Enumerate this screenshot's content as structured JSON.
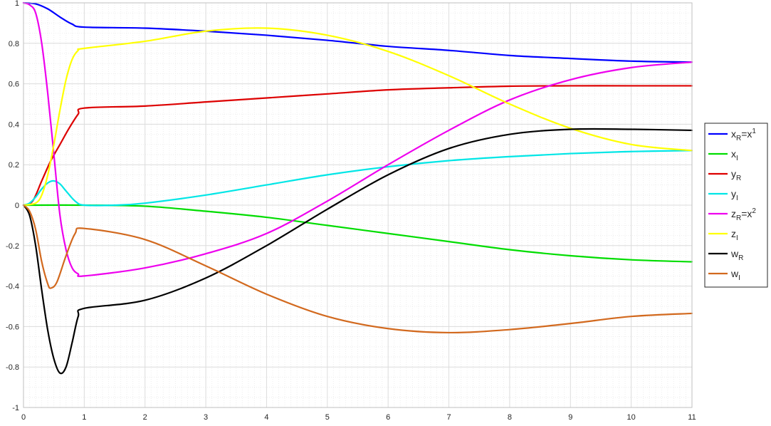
{
  "chart_data": {
    "type": "line",
    "title": "",
    "xlabel": "",
    "ylabel": "",
    "xlim": [
      0,
      11
    ],
    "ylim": [
      -1,
      1
    ],
    "x_ticks": [
      0,
      1,
      2,
      3,
      4,
      5,
      6,
      7,
      8,
      9,
      10,
      11
    ],
    "y_ticks": [
      -1,
      -0.8,
      -0.6,
      -0.4,
      -0.2,
      0,
      0.2,
      0.4,
      0.6,
      0.8,
      1
    ],
    "x_tick_labels": [
      "0",
      "1",
      "2",
      "3",
      "4",
      "5",
      "6",
      "7",
      "8",
      "9",
      "10",
      "11"
    ],
    "y_tick_labels": [
      "-1",
      "-0.8",
      "-0.6",
      "-0.4",
      "-0.2",
      "0",
      "0.2",
      "0.4",
      "0.6",
      "0.8",
      "1"
    ],
    "grid": "major and minor",
    "legend_position": "outside right",
    "series": [
      {
        "name": "x_R=x^1",
        "legend": {
          "base": "x",
          "sub": "R",
          "rest": "=x",
          "sup": "1"
        },
        "color": "#0000ff",
        "points": [
          [
            0,
            1
          ],
          [
            0.2,
            0.995
          ],
          [
            0.4,
            0.97
          ],
          [
            0.6,
            0.93
          ],
          [
            0.8,
            0.895
          ],
          [
            1,
            0.88
          ],
          [
            2,
            0.875
          ],
          [
            3,
            0.86
          ],
          [
            4,
            0.84
          ],
          [
            5,
            0.815
          ],
          [
            6,
            0.785
          ],
          [
            7,
            0.765
          ],
          [
            8,
            0.74
          ],
          [
            9,
            0.725
          ],
          [
            10,
            0.712
          ],
          [
            11,
            0.707
          ]
        ]
      },
      {
        "name": "x_I",
        "legend": {
          "base": "x",
          "sub": "I",
          "rest": "",
          "sup": ""
        },
        "color": "#00dd00",
        "points": [
          [
            0,
            0
          ],
          [
            1,
            0
          ],
          [
            2,
            -0.005
          ],
          [
            3,
            -0.03
          ],
          [
            4,
            -0.06
          ],
          [
            5,
            -0.1
          ],
          [
            6,
            -0.14
          ],
          [
            7,
            -0.18
          ],
          [
            8,
            -0.22
          ],
          [
            9,
            -0.25
          ],
          [
            10,
            -0.27
          ],
          [
            11,
            -0.28
          ]
        ]
      },
      {
        "name": "y_R",
        "legend": {
          "base": "y",
          "sub": "R",
          "rest": "",
          "sup": ""
        },
        "color": "#dd0000",
        "points": [
          [
            0,
            0
          ],
          [
            0.15,
            0.02
          ],
          [
            0.3,
            0.12
          ],
          [
            0.45,
            0.22
          ],
          [
            0.6,
            0.3
          ],
          [
            0.75,
            0.38
          ],
          [
            0.9,
            0.45
          ],
          [
            1,
            0.48
          ],
          [
            2,
            0.49
          ],
          [
            3,
            0.51
          ],
          [
            4,
            0.53
          ],
          [
            5,
            0.55
          ],
          [
            6,
            0.57
          ],
          [
            7,
            0.58
          ],
          [
            8,
            0.588
          ],
          [
            9,
            0.59
          ],
          [
            10,
            0.59
          ],
          [
            11,
            0.59
          ]
        ]
      },
      {
        "name": "y_I",
        "legend": {
          "base": "y",
          "sub": "I",
          "rest": "",
          "sup": ""
        },
        "color": "#00e6e6",
        "points": [
          [
            0,
            0
          ],
          [
            0.1,
            0.01
          ],
          [
            0.2,
            0.04
          ],
          [
            0.3,
            0.08
          ],
          [
            0.4,
            0.11
          ],
          [
            0.5,
            0.12
          ],
          [
            0.6,
            0.105
          ],
          [
            0.7,
            0.07
          ],
          [
            0.85,
            0.02
          ],
          [
            1,
            0
          ],
          [
            1.5,
            0
          ],
          [
            2,
            0.01
          ],
          [
            3,
            0.05
          ],
          [
            4,
            0.1
          ],
          [
            5,
            0.15
          ],
          [
            6,
            0.19
          ],
          [
            7,
            0.22
          ],
          [
            8,
            0.24
          ],
          [
            9,
            0.255
          ],
          [
            10,
            0.265
          ],
          [
            11,
            0.27
          ]
        ]
      },
      {
        "name": "z_R=x^2",
        "legend": {
          "base": "z",
          "sub": "R",
          "rest": "=x",
          "sup": "2"
        },
        "color": "#ee00ee",
        "points": [
          [
            0,
            1
          ],
          [
            0.1,
            0.99
          ],
          [
            0.2,
            0.95
          ],
          [
            0.3,
            0.8
          ],
          [
            0.4,
            0.55
          ],
          [
            0.5,
            0.25
          ],
          [
            0.6,
            -0.05
          ],
          [
            0.7,
            -0.22
          ],
          [
            0.8,
            -0.31
          ],
          [
            0.9,
            -0.34
          ],
          [
            1,
            -0.35
          ],
          [
            2,
            -0.31
          ],
          [
            3,
            -0.24
          ],
          [
            4,
            -0.14
          ],
          [
            5,
            0.02
          ],
          [
            6,
            0.2
          ],
          [
            7,
            0.37
          ],
          [
            8,
            0.52
          ],
          [
            9,
            0.62
          ],
          [
            10,
            0.68
          ],
          [
            11,
            0.707
          ]
        ]
      },
      {
        "name": "z_I",
        "legend": {
          "base": "z",
          "sub": "I",
          "rest": "",
          "sup": ""
        },
        "color": "#ffff00",
        "points": [
          [
            0,
            0
          ],
          [
            0.2,
            0.01
          ],
          [
            0.3,
            0.05
          ],
          [
            0.4,
            0.15
          ],
          [
            0.5,
            0.3
          ],
          [
            0.6,
            0.47
          ],
          [
            0.7,
            0.62
          ],
          [
            0.8,
            0.72
          ],
          [
            0.9,
            0.765
          ],
          [
            1,
            0.775
          ],
          [
            2,
            0.81
          ],
          [
            3,
            0.86
          ],
          [
            4,
            0.875
          ],
          [
            5,
            0.84
          ],
          [
            6,
            0.76
          ],
          [
            7,
            0.64
          ],
          [
            8,
            0.5
          ],
          [
            9,
            0.38
          ],
          [
            10,
            0.3
          ],
          [
            11,
            0.27
          ]
        ]
      },
      {
        "name": "w_R",
        "legend": {
          "base": "w",
          "sub": "R",
          "rest": "",
          "sup": ""
        },
        "color": "#000000",
        "points": [
          [
            0,
            0
          ],
          [
            0.1,
            -0.05
          ],
          [
            0.2,
            -0.2
          ],
          [
            0.3,
            -0.42
          ],
          [
            0.4,
            -0.62
          ],
          [
            0.5,
            -0.76
          ],
          [
            0.6,
            -0.83
          ],
          [
            0.7,
            -0.8
          ],
          [
            0.8,
            -0.68
          ],
          [
            0.9,
            -0.55
          ],
          [
            1,
            -0.51
          ],
          [
            2,
            -0.47
          ],
          [
            3,
            -0.36
          ],
          [
            4,
            -0.2
          ],
          [
            5,
            -0.02
          ],
          [
            6,
            0.15
          ],
          [
            7,
            0.28
          ],
          [
            8,
            0.35
          ],
          [
            9,
            0.375
          ],
          [
            10,
            0.375
          ],
          [
            11,
            0.37
          ]
        ]
      },
      {
        "name": "w_I",
        "legend": {
          "base": "w",
          "sub": "I",
          "rest": "",
          "sup": ""
        },
        "color": "#d2691e",
        "points": [
          [
            0,
            0
          ],
          [
            0.1,
            -0.03
          ],
          [
            0.2,
            -0.12
          ],
          [
            0.3,
            -0.28
          ],
          [
            0.4,
            -0.39
          ],
          [
            0.45,
            -0.41
          ],
          [
            0.55,
            -0.38
          ],
          [
            0.7,
            -0.25
          ],
          [
            0.85,
            -0.14
          ],
          [
            1,
            -0.115
          ],
          [
            2,
            -0.17
          ],
          [
            3,
            -0.3
          ],
          [
            4,
            -0.44
          ],
          [
            5,
            -0.55
          ],
          [
            6,
            -0.61
          ],
          [
            7,
            -0.63
          ],
          [
            8,
            -0.615
          ],
          [
            9,
            -0.585
          ],
          [
            10,
            -0.55
          ],
          [
            11,
            -0.535
          ]
        ]
      }
    ]
  }
}
